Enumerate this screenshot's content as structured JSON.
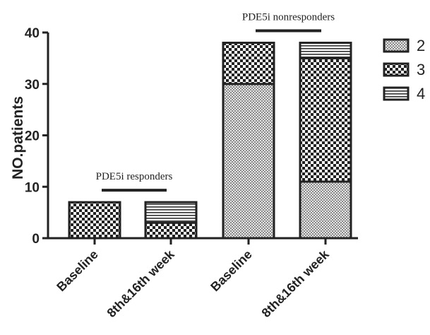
{
  "chart_data": {
    "type": "bar",
    "stacked": true,
    "categories": [
      "Baseline",
      "8th&16th week",
      "Baseline",
      "8th&16th week"
    ],
    "groups": [
      {
        "label": "PDE5i responders",
        "categories": [
          0,
          1
        ]
      },
      {
        "label": "PDE5i nonresponders",
        "categories": [
          2,
          3
        ]
      }
    ],
    "series": [
      {
        "name": "2",
        "pattern": "fine-dots",
        "values": [
          0,
          0,
          30,
          11
        ]
      },
      {
        "name": "3",
        "pattern": "checker",
        "values": [
          7,
          3,
          8,
          24
        ]
      },
      {
        "name": "4",
        "pattern": "horizontal-stripes",
        "values": [
          0,
          4,
          0,
          3
        ]
      }
    ],
    "ylabel": "NO.patients",
    "xlabel": "",
    "ylim": [
      0,
      40
    ],
    "yticks": [
      "0",
      "10",
      "20",
      "30",
      "40"
    ],
    "legend": "right",
    "grid": false
  }
}
